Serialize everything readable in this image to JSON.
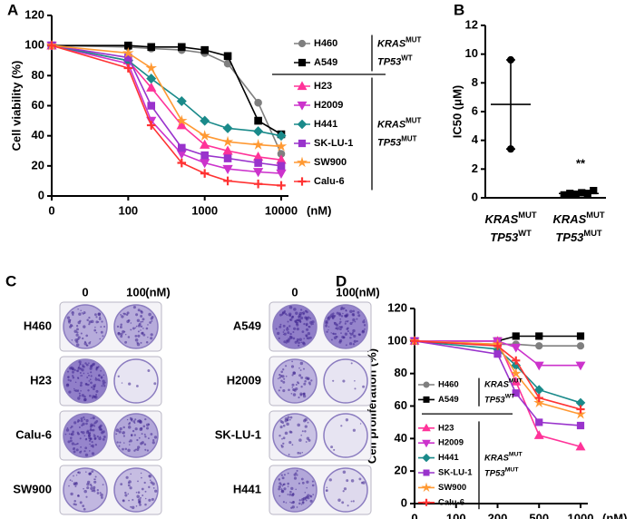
{
  "chart_data": [
    {
      "type": "line",
      "panel_label": "A",
      "y_label": "Cell viability (%)",
      "x_unit": "(nM)",
      "xscale": "log",
      "x": [
        0,
        100,
        200,
        500,
        1000,
        2000,
        5000,
        10000
      ],
      "xlim": [
        0,
        10000
      ],
      "xticks": [
        0,
        100,
        1000,
        10000
      ],
      "ylim": [
        0,
        120
      ],
      "yticks": [
        0,
        20,
        40,
        60,
        80,
        100,
        120
      ],
      "legend": "right",
      "series": [
        {
          "name": "H460",
          "color": "#7f7f7f",
          "marker": "circle",
          "values": [
            100,
            99,
            98,
            97,
            95,
            88,
            62,
            28
          ]
        },
        {
          "name": "A549",
          "color": "#000000",
          "marker": "square",
          "values": [
            100,
            100,
            99,
            99,
            97,
            93,
            50,
            41
          ]
        },
        {
          "name": "H23",
          "color": "#ff3399",
          "marker": "triangle",
          "values": [
            100,
            90,
            72,
            47,
            34,
            30,
            26,
            24
          ]
        },
        {
          "name": "H2009",
          "color": "#cc33cc",
          "marker": "triangle-down",
          "values": [
            100,
            88,
            50,
            28,
            22,
            18,
            16,
            15
          ]
        },
        {
          "name": "H441",
          "color": "#1a8a8a",
          "marker": "diamond",
          "values": [
            100,
            90,
            78,
            63,
            50,
            45,
            43,
            40
          ]
        },
        {
          "name": "SK-LU-1",
          "color": "#9933cc",
          "marker": "square",
          "values": [
            100,
            92,
            60,
            32,
            27,
            25,
            22,
            20
          ]
        },
        {
          "name": "SW900",
          "color": "#ff9933",
          "marker": "star",
          "values": [
            100,
            95,
            85,
            50,
            40,
            36,
            34,
            33
          ]
        },
        {
          "name": "Calu-6",
          "color": "#ff3333",
          "marker": "plus",
          "values": [
            100,
            85,
            47,
            22,
            15,
            10,
            8,
            7
          ]
        }
      ],
      "groups": [
        {
          "label": [
            {
              "gene": "KRAS",
              "status": "MUT"
            },
            {
              "gene": "TP53",
              "status": "WT"
            }
          ],
          "members": [
            "H460",
            "A549"
          ]
        },
        {
          "label": [
            {
              "gene": "KRAS",
              "status": "MUT"
            },
            {
              "gene": "TP53",
              "status": "MUT"
            }
          ],
          "members": [
            "H23",
            "H2009",
            "H441",
            "SK-LU-1",
            "SW900",
            "Calu-6"
          ]
        }
      ]
    },
    {
      "type": "dot",
      "panel_label": "B",
      "y_label": "IC50 (μM)",
      "ylim": [
        0,
        12
      ],
      "yticks": [
        0,
        2,
        4,
        6,
        8,
        10,
        12
      ],
      "groups": [
        {
          "label": [
            {
              "gene": "KRAS",
              "status": "MUT"
            },
            {
              "gene": "TP53",
              "status": "WT"
            }
          ]
        },
        {
          "label": [
            {
              "gene": "KRAS",
              "status": "MUT"
            },
            {
              "gene": "TP53",
              "status": "MUT"
            }
          ]
        }
      ],
      "values": [
        [
          9.6,
          3.4
        ],
        [
          0.2,
          0.3,
          0.25,
          0.35,
          0.3,
          0.5
        ]
      ],
      "means": [
        6.5,
        0.3
      ],
      "errors": [
        3.1,
        0.1
      ],
      "annotation": "**"
    },
    {
      "type": "line",
      "panel_label": "D",
      "y_label": "Cell proliferation  (%)",
      "x_unit": "(nM)",
      "xscale": "log",
      "x": [
        0,
        200,
        300,
        500,
        1000
      ],
      "xlim": [
        0,
        1000
      ],
      "xticks": [
        0,
        100,
        200,
        500,
        1000
      ],
      "ylim": [
        0,
        120
      ],
      "yticks": [
        0,
        20,
        40,
        60,
        80,
        100,
        120
      ],
      "legend": "lower left",
      "series": [
        {
          "name": "H460",
          "color": "#7f7f7f",
          "marker": "circle",
          "values": [
            100,
            98,
            98,
            97,
            97
          ]
        },
        {
          "name": "A549",
          "color": "#000000",
          "marker": "square",
          "values": [
            100,
            100,
            103,
            103,
            103
          ]
        },
        {
          "name": "H23",
          "color": "#ff3399",
          "marker": "triangle",
          "values": [
            100,
            100,
            75,
            42,
            35
          ]
        },
        {
          "name": "H2009",
          "color": "#cc33cc",
          "marker": "triangle-down",
          "values": [
            100,
            100,
            96,
            85,
            85
          ]
        },
        {
          "name": "H441",
          "color": "#1a8a8a",
          "marker": "diamond",
          "values": [
            100,
            95,
            85,
            70,
            62
          ]
        },
        {
          "name": "SK-LU-1",
          "color": "#9933cc",
          "marker": "square",
          "values": [
            100,
            92,
            68,
            50,
            48
          ]
        },
        {
          "name": "SW900",
          "color": "#ff9933",
          "marker": "star",
          "values": [
            100,
            98,
            80,
            62,
            55
          ]
        },
        {
          "name": "Calu-6",
          "color": "#ff3333",
          "marker": "plus",
          "values": [
            100,
            97,
            88,
            65,
            58
          ]
        }
      ],
      "groups": [
        {
          "label": [
            {
              "gene": "KRAS",
              "status": "MUT"
            },
            {
              "gene": "TP53",
              "status": "WT"
            }
          ],
          "members": [
            "H460",
            "A549"
          ]
        },
        {
          "label": [
            {
              "gene": "KRAS",
              "status": "MUT"
            },
            {
              "gene": "TP53",
              "status": "MUT"
            }
          ],
          "members": [
            "H23",
            "H2009",
            "H441",
            "SK-LU-1",
            "SW900",
            "Calu-6"
          ]
        }
      ]
    }
  ],
  "colony_assay": {
    "panel_label": "C",
    "doses": [
      "0",
      "100"
    ],
    "dose_unit": "(nM)",
    "left_plates": [
      "H460",
      "H23",
      "Calu-6",
      "SW900"
    ],
    "right_plates": [
      "A549",
      "H2009",
      "SK-LU-1",
      "H441"
    ]
  }
}
